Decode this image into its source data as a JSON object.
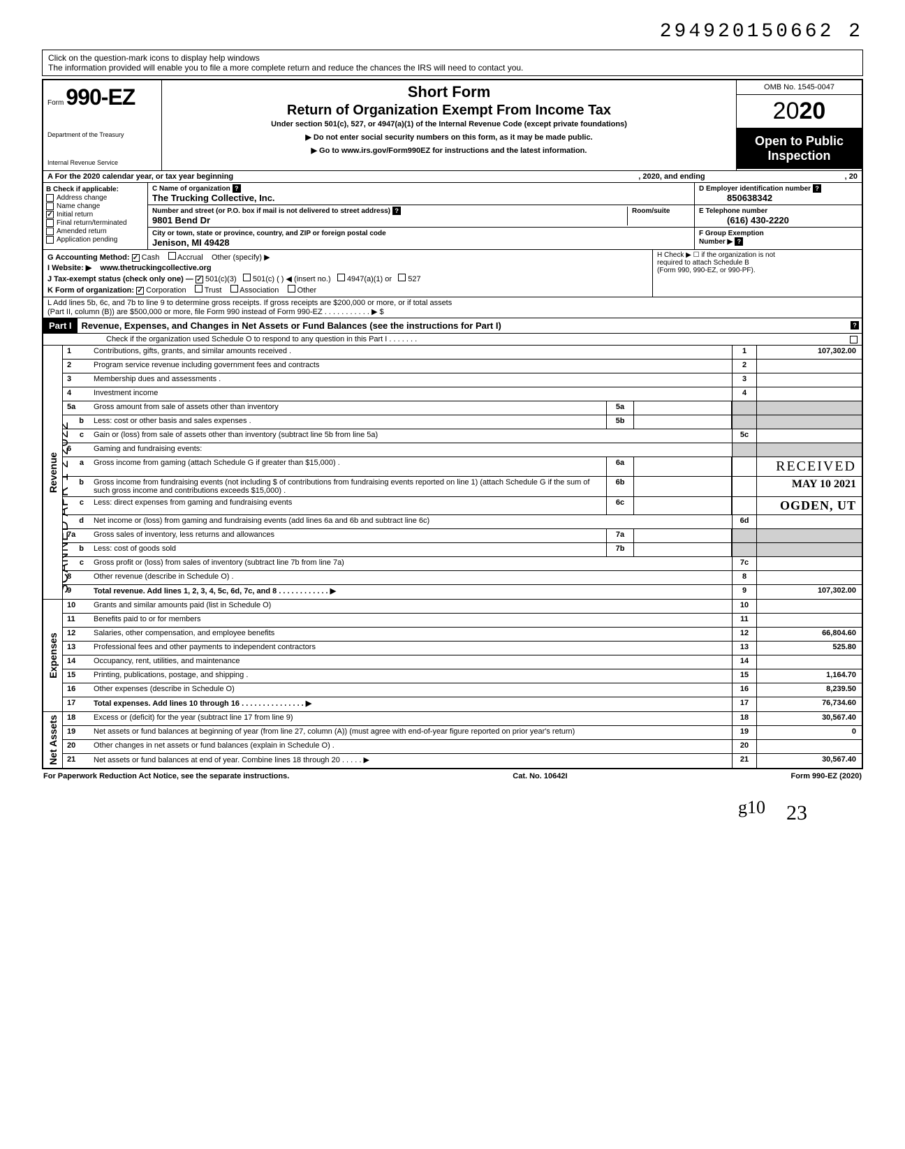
{
  "doc_id": "294920150662 2",
  "help_line1": "Click on the question-mark icons to display help windows",
  "help_line2": "The information provided will enable you to file a more complete return and reduce the chances the IRS will need to contact you.",
  "form_prefix": "Form",
  "form_number": "990-EZ",
  "dept1": "Department of the Treasury",
  "dept2": "Internal Revenue Service",
  "short_form": "Short Form",
  "return_title": "Return of Organization Exempt From Income Tax",
  "under_section": "Under section 501(c), 527, or 4947(a)(1) of the Internal Revenue Code (except private foundations)",
  "arrow1": "▶ Do not enter social security numbers on this form, as it may be made public.",
  "arrow2": "▶ Go to www.irs.gov/Form990EZ for instructions and the latest information.",
  "omb": "OMB No. 1545-0047",
  "year_prefix": "20",
  "year_suffix": "20",
  "open_public1": "Open to Public",
  "open_public2": "Inspection",
  "row_a_left": "A  For the 2020 calendar year, or tax year beginning",
  "row_a_mid": ", 2020, and ending",
  "row_a_right": ", 20",
  "b_label": "B  Check if applicable:",
  "b_opts": [
    "Address change",
    "Name change",
    "Initial return",
    "Final return/terminated",
    "Amended return",
    "Application pending"
  ],
  "b_checked_idx": 2,
  "c_label": "C  Name of organization",
  "org_name": "The Trucking Collective, Inc.",
  "addr_label": "Number and street (or P.O. box if mail is not delivered to street address)",
  "room_label": "Room/suite",
  "street": "9801 Bend Dr",
  "city_label": "City or town, state or province, country, and ZIP or foreign postal code",
  "city": "Jenison, MI 49428",
  "d_label": "D Employer identification number",
  "ein": "850638342",
  "e_label": "E Telephone number",
  "phone": "(616) 430-2220",
  "f_label": "F Group Exemption",
  "f_label2": "Number ▶",
  "g_label": "G  Accounting Method:",
  "g_cash": "Cash",
  "g_accrual": "Accrual",
  "g_other": "Other (specify) ▶",
  "i_label": "I  Website: ▶",
  "website": "www.thetruckingcollective.org",
  "j_label": "J  Tax-exempt status (check only one) —",
  "j_501c3": "501(c)(3)",
  "j_501c": "501(c) (          ) ◀ (insert no.)",
  "j_4947": "4947(a)(1) or",
  "j_527": "527",
  "k_label": "K  Form of organization:",
  "k_corp": "Corporation",
  "k_trust": "Trust",
  "k_assoc": "Association",
  "k_other": "Other",
  "h_label": "H  Check ▶ ☐ if the organization is not",
  "h_label2": "required to attach Schedule B",
  "h_label3": "(Form 990, 990-EZ, or 990-PF).",
  "l_text": "L  Add lines 5b, 6c, and 7b to line 9 to determine gross receipts. If gross receipts are $200,000 or more, or if total assets",
  "l_text2": "(Part II, column (B)) are $500,000 or more, file Form 990 instead of Form 990-EZ .   .   .   .   .   .   .   .   .   .   .   ▶  $",
  "part1": "Part I",
  "part1_title": "Revenue, Expenses, and Changes in Net Assets or Fund Balances (see the instructions for Part I)",
  "part1_check": "Check if the organization used Schedule O to respond to any question in this Part I  .   .   .   .   .   .   .",
  "revenue_label": "Revenue",
  "expenses_label": "Expenses",
  "netassets_label": "Net Assets",
  "scanned": "SCANNED APR 1 2 2022",
  "stamp_received": "RECEIVED",
  "stamp_date": "MAY 10 2021",
  "stamp_ogden": "OGDEN, UT",
  "stamp_side1": "D187",
  "stamp_side2": "RS-OSC",
  "lines": {
    "1": {
      "n": "1",
      "d": "Contributions, gifts, grants, and similar amounts received .",
      "rn": "1",
      "rv": "107,302.00"
    },
    "2": {
      "n": "2",
      "d": "Program service revenue including government fees and contracts",
      "rn": "2",
      "rv": ""
    },
    "3": {
      "n": "3",
      "d": "Membership dues and assessments .",
      "rn": "3",
      "rv": ""
    },
    "4": {
      "n": "4",
      "d": "Investment income",
      "rn": "4",
      "rv": ""
    },
    "5a": {
      "n": "5a",
      "d": "Gross amount from sale of assets other than inventory",
      "mn": "5a"
    },
    "5b": {
      "n": "b",
      "d": "Less: cost or other basis and sales expenses .",
      "mn": "5b"
    },
    "5c": {
      "n": "c",
      "d": "Gain or (loss) from sale of assets other than inventory (subtract line 5b from line 5a)",
      "rn": "5c",
      "rv": ""
    },
    "6": {
      "n": "6",
      "d": "Gaming and fundraising events:"
    },
    "6a": {
      "n": "a",
      "d": "Gross income from gaming (attach Schedule G if greater than $15,000) .",
      "mn": "6a"
    },
    "6b": {
      "n": "b",
      "d": "Gross income from fundraising events (not including  $                           of contributions from fundraising events reported on line 1) (attach Schedule G if the sum of such gross income and contributions exceeds $15,000) .",
      "mn": "6b"
    },
    "6c": {
      "n": "c",
      "d": "Less: direct expenses from gaming and fundraising events",
      "mn": "6c"
    },
    "6d": {
      "n": "d",
      "d": "Net income or (loss) from gaming and fundraising events (add lines 6a and 6b and subtract line 6c)",
      "rn": "6d",
      "rv": ""
    },
    "7a": {
      "n": "7a",
      "d": "Gross sales of inventory, less returns and allowances",
      "mn": "7a"
    },
    "7b": {
      "n": "b",
      "d": "Less: cost of goods sold",
      "mn": "7b"
    },
    "7c": {
      "n": "c",
      "d": "Gross profit or (loss) from sales of inventory (subtract line 7b from line 7a)",
      "rn": "7c",
      "rv": ""
    },
    "8": {
      "n": "8",
      "d": "Other revenue (describe in Schedule O) .",
      "rn": "8",
      "rv": ""
    },
    "9": {
      "n": "9",
      "d": "Total revenue. Add lines 1, 2, 3, 4, 5c, 6d, 7c, and 8   .   .   .   .   .   .   .   .   .   .   .   .   ▶",
      "rn": "9",
      "rv": "107,302.00",
      "bold": true
    },
    "10": {
      "n": "10",
      "d": "Grants and similar amounts paid (list in Schedule O)",
      "rn": "10",
      "rv": ""
    },
    "11": {
      "n": "11",
      "d": "Benefits paid to or for members",
      "rn": "11",
      "rv": ""
    },
    "12": {
      "n": "12",
      "d": "Salaries, other compensation, and employee benefits",
      "rn": "12",
      "rv": "66,804.60"
    },
    "13": {
      "n": "13",
      "d": "Professional fees and other payments to independent contractors",
      "rn": "13",
      "rv": "525.80"
    },
    "14": {
      "n": "14",
      "d": "Occupancy, rent, utilities, and maintenance",
      "rn": "14",
      "rv": ""
    },
    "15": {
      "n": "15",
      "d": "Printing, publications, postage, and shipping .",
      "rn": "15",
      "rv": "1,164.70"
    },
    "16": {
      "n": "16",
      "d": "Other expenses (describe in Schedule O)",
      "rn": "16",
      "rv": "8,239.50"
    },
    "17": {
      "n": "17",
      "d": "Total expenses. Add lines 10 through 16  .   .   .   .   .   .   .   .   .   .   .   .   .   .   .   ▶",
      "rn": "17",
      "rv": "76,734.60",
      "bold": true
    },
    "18": {
      "n": "18",
      "d": "Excess or (deficit) for the year (subtract line 17 from line 9)",
      "rn": "18",
      "rv": "30,567.40"
    },
    "19": {
      "n": "19",
      "d": "Net assets or fund balances at beginning of year (from line 27, column (A)) (must agree with end-of-year figure reported on prior year's return)",
      "rn": "19",
      "rv": "0"
    },
    "20": {
      "n": "20",
      "d": "Other changes in net assets or fund balances (explain in Schedule O) .",
      "rn": "20",
      "rv": ""
    },
    "21": {
      "n": "21",
      "d": "Net assets or fund balances at end of year. Combine lines 18 through 20   .   .   .   .   .   ▶",
      "rn": "21",
      "rv": "30,567.40"
    }
  },
  "footer_left": "For Paperwork Reduction Act Notice, see the separate instructions.",
  "footer_mid": "Cat. No. 10642I",
  "footer_right": "Form 990-EZ (2020)",
  "handwrite": "g10",
  "corner_num": "23",
  "colors": {
    "black": "#000000",
    "white": "#ffffff",
    "shade": "#d0d0d0"
  }
}
